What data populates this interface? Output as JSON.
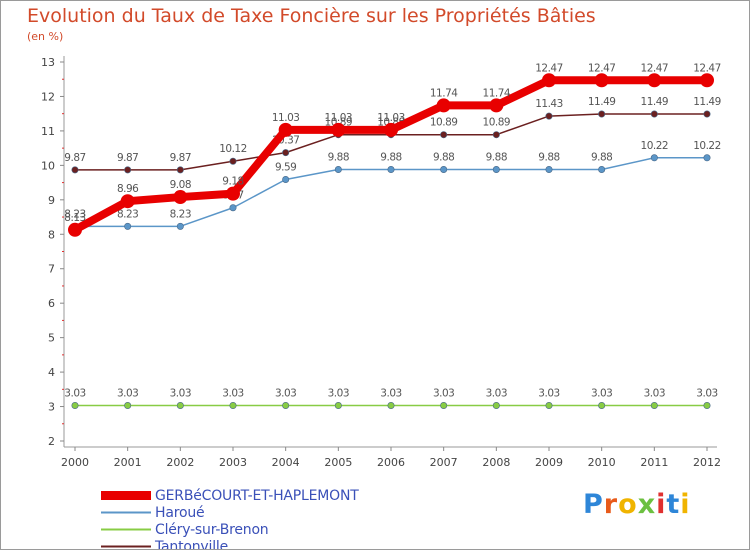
{
  "header": {
    "title": "Evolution du Taux de Taxe Foncière sur les Propriétés Bâties",
    "subtitle": "(en %)"
  },
  "chart_data": {
    "type": "line",
    "title": "Evolution du Taux de Taxe Foncière sur les Propriétés Bâties",
    "ylabel": "(en %)",
    "xlabel": "",
    "categories": [
      "2000",
      "2001",
      "2002",
      "2003",
      "2004",
      "2005",
      "2006",
      "2007",
      "2008",
      "2009",
      "2010",
      "2011",
      "2012"
    ],
    "ylim": [
      2,
      13
    ],
    "yticks": [
      2,
      3,
      4,
      5,
      6,
      7,
      8,
      9,
      10,
      11,
      12,
      13
    ],
    "ytick_labels": [
      "2",
      "3",
      "4",
      "5",
      "6",
      "7",
      "8",
      "9",
      "10",
      "11",
      "12",
      "13"
    ],
    "grid": false,
    "legend_position": "bottom-left",
    "series": [
      {
        "name": "Tantonville",
        "color": "#6b2020",
        "values": [
          9.87,
          9.87,
          9.87,
          10.12,
          10.37,
          10.89,
          10.89,
          10.89,
          10.89,
          11.43,
          11.49,
          11.49,
          11.49
        ],
        "labels": [
          "9.87",
          "9.87",
          "9.87",
          "10.12",
          "10.37",
          "10.89",
          "10.89",
          "10.89",
          "10.89",
          "11.43",
          "11.49",
          "11.49",
          "11.49"
        ]
      },
      {
        "name": "Haroué",
        "color": "#5b96c8",
        "values": [
          8.23,
          8.23,
          8.23,
          8.77,
          9.59,
          9.88,
          9.88,
          9.88,
          9.88,
          9.88,
          9.88,
          10.22,
          10.22
        ],
        "labels": [
          "8.23",
          "8.23",
          "8.23",
          "8.77",
          "9.59",
          "9.88",
          "9.88",
          "9.88",
          "9.88",
          "9.88",
          "9.88",
          "10.22",
          "10.22"
        ]
      },
      {
        "name": "Cléry-sur-Brenon",
        "color": "#88cc44",
        "values": [
          3.03,
          3.03,
          3.03,
          3.03,
          3.03,
          3.03,
          3.03,
          3.03,
          3.03,
          3.03,
          3.03,
          3.03,
          3.03
        ],
        "labels": [
          "3.03",
          "3.03",
          "3.03",
          "3.03",
          "3.03",
          "3.03",
          "3.03",
          "3.03",
          "3.03",
          "3.03",
          "3.03",
          "3.03",
          "3.03"
        ]
      },
      {
        "name": "GERBéCOURT-ET-HAPLEMONT",
        "color": "#e80000",
        "values": [
          8.13,
          8.96,
          9.08,
          9.18,
          11.03,
          11.03,
          11.03,
          11.74,
          11.74,
          12.47,
          12.47,
          12.47,
          12.47
        ],
        "labels": [
          "8.13",
          "8.96",
          "9.08",
          "9.18",
          "11.03",
          "11.03",
          "11.03",
          "11.74",
          "11.74",
          "12.47",
          "12.47",
          "12.47",
          "12.47"
        ]
      }
    ]
  },
  "legend": {
    "items": [
      {
        "label": "GERBéCOURT-ET-HAPLEMONT",
        "color": "#e80000"
      },
      {
        "label": "Haroué",
        "color": "#5b96c8"
      },
      {
        "label": "Cléry-sur-Brenon",
        "color": "#88cc44"
      },
      {
        "label": "Tantonville",
        "color": "#6b2020"
      }
    ]
  },
  "logo": {
    "text": "Proxiti",
    "letter_colors": [
      "#2e86d8",
      "#e85a1a",
      "#f0b400",
      "#6cc040",
      "#e03030",
      "#2e86d8",
      "#f0b400"
    ]
  }
}
